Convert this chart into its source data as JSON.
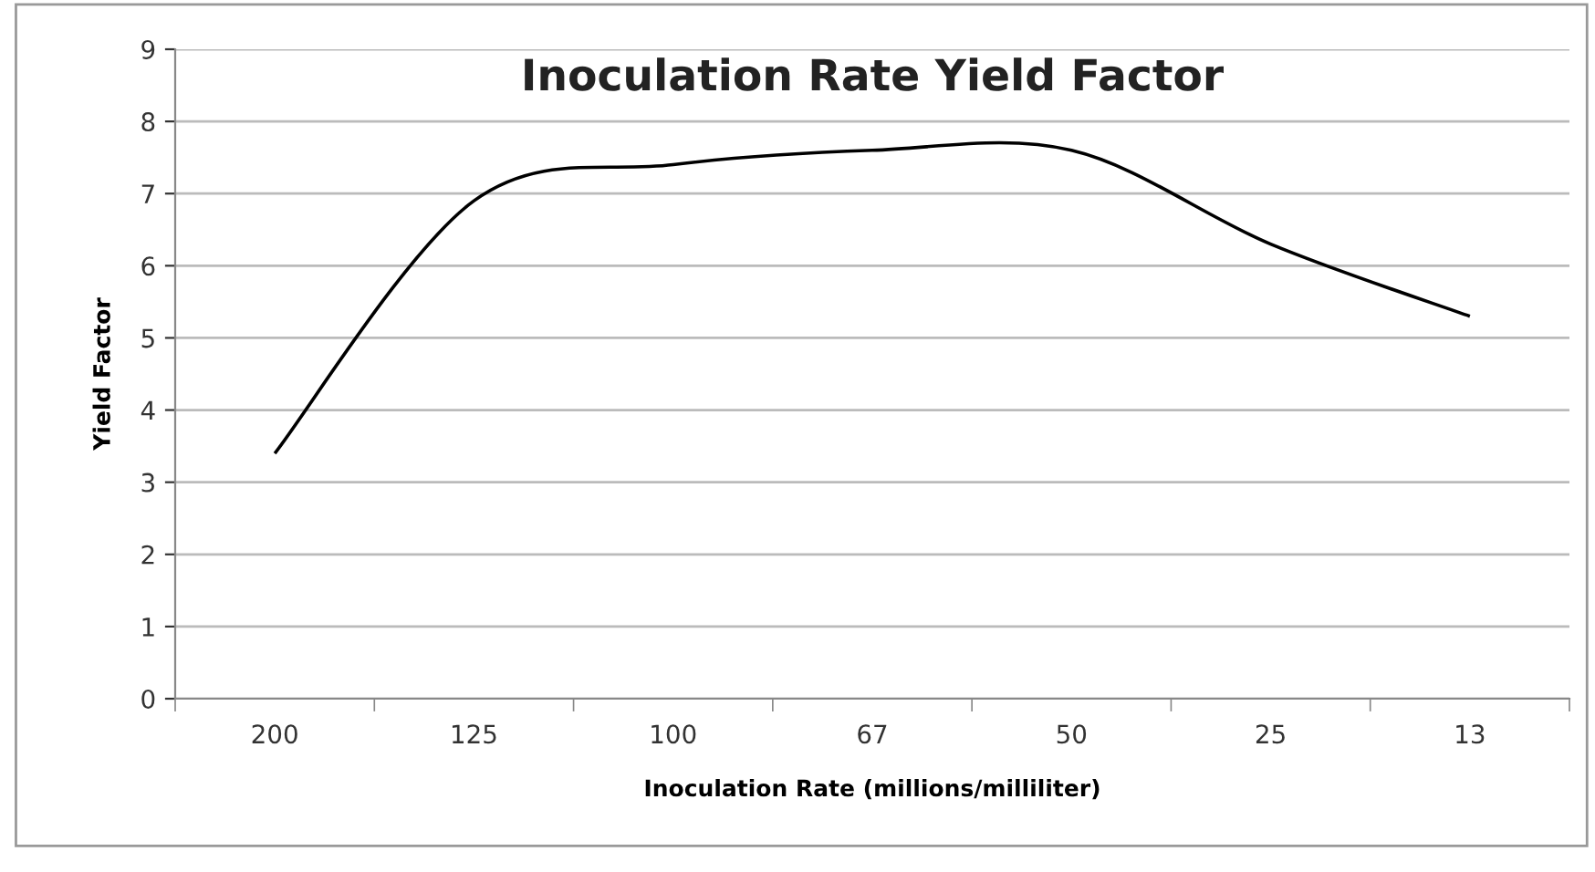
{
  "chart_data": {
    "type": "line",
    "title": "Inoculation Rate Yield Factor",
    "xlabel": "Inoculation Rate (millions/milliliter)",
    "ylabel": "Yield Factor",
    "categories": [
      "200",
      "125",
      "100",
      "67",
      "50",
      "25",
      "13"
    ],
    "series": [
      {
        "color": "#000000",
        "values": [
          3.4,
          6.9,
          7.4,
          7.6,
          7.6,
          6.3,
          5.3
        ]
      }
    ],
    "ylim": [
      0,
      9
    ],
    "yticks": [
      0,
      1,
      2,
      3,
      4,
      5,
      6,
      7,
      8,
      9
    ],
    "grid": "y",
    "legend": false,
    "marker": "none",
    "line_style": "solid"
  }
}
